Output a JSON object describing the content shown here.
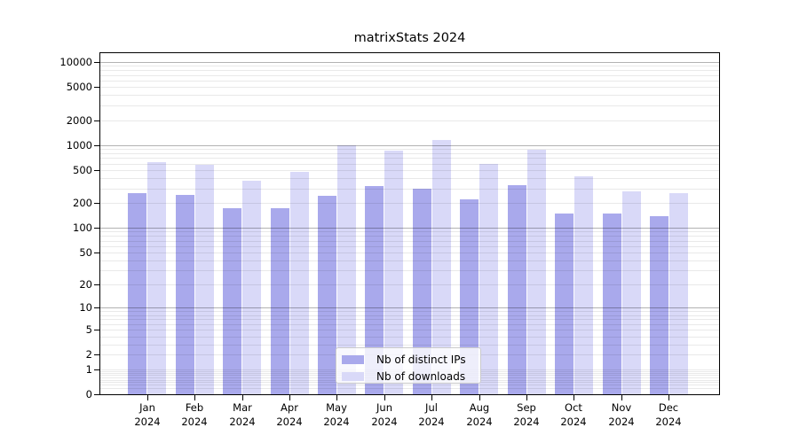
{
  "title": "matrixStats 2024",
  "legend": {
    "position": "lower center",
    "items": [
      {
        "label": "Nb of distinct IPs",
        "color": "#a9a9ec"
      },
      {
        "label": "Nb of downloads",
        "color": "#d9d9f8"
      }
    ]
  },
  "colors": {
    "bar_distinct_ips": "#a9a9ec",
    "bar_downloads": "#d9d9f8",
    "grid_major": "#b3b3b3",
    "grid_minor": "#ebebeb",
    "axis": "#000000",
    "background": "#ffffff"
  },
  "chart_data": {
    "type": "bar",
    "title": "matrixStats 2024",
    "categories": [
      "Jan",
      "Feb",
      "Mar",
      "Apr",
      "May",
      "Jun",
      "Jul",
      "Aug",
      "Sep",
      "Oct",
      "Nov",
      "Dec"
    ],
    "category_year": "2024",
    "series": [
      {
        "name": "Nb of distinct IPs",
        "color": "#a9a9ec",
        "values": [
          265,
          250,
          175,
          172,
          245,
          320,
          300,
          220,
          330,
          150,
          148,
          138
        ]
      },
      {
        "name": "Nb of downloads",
        "color": "#d9d9f8",
        "values": [
          620,
          580,
          370,
          475,
          990,
          870,
          1160,
          590,
          890,
          420,
          275,
          265
        ]
      }
    ],
    "xlabel": "",
    "ylabel": "",
    "yscale": "log(1+x)",
    "ylim": [
      0,
      12800
    ],
    "yticks": [
      0,
      1,
      2,
      5,
      10,
      20,
      50,
      100,
      200,
      500,
      1000,
      2000,
      5000,
      10000
    ],
    "grid": {
      "major_at": [
        10,
        100,
        1000,
        10000
      ],
      "minor_multiples": [
        2,
        3,
        4,
        5,
        6,
        7,
        8,
        9
      ],
      "minor_sub1": [
        0.2,
        0.3,
        0.4,
        0.5,
        0.6,
        0.7,
        0.8,
        0.9,
        1
      ],
      "visible": true
    },
    "legend_position": "lower center"
  }
}
